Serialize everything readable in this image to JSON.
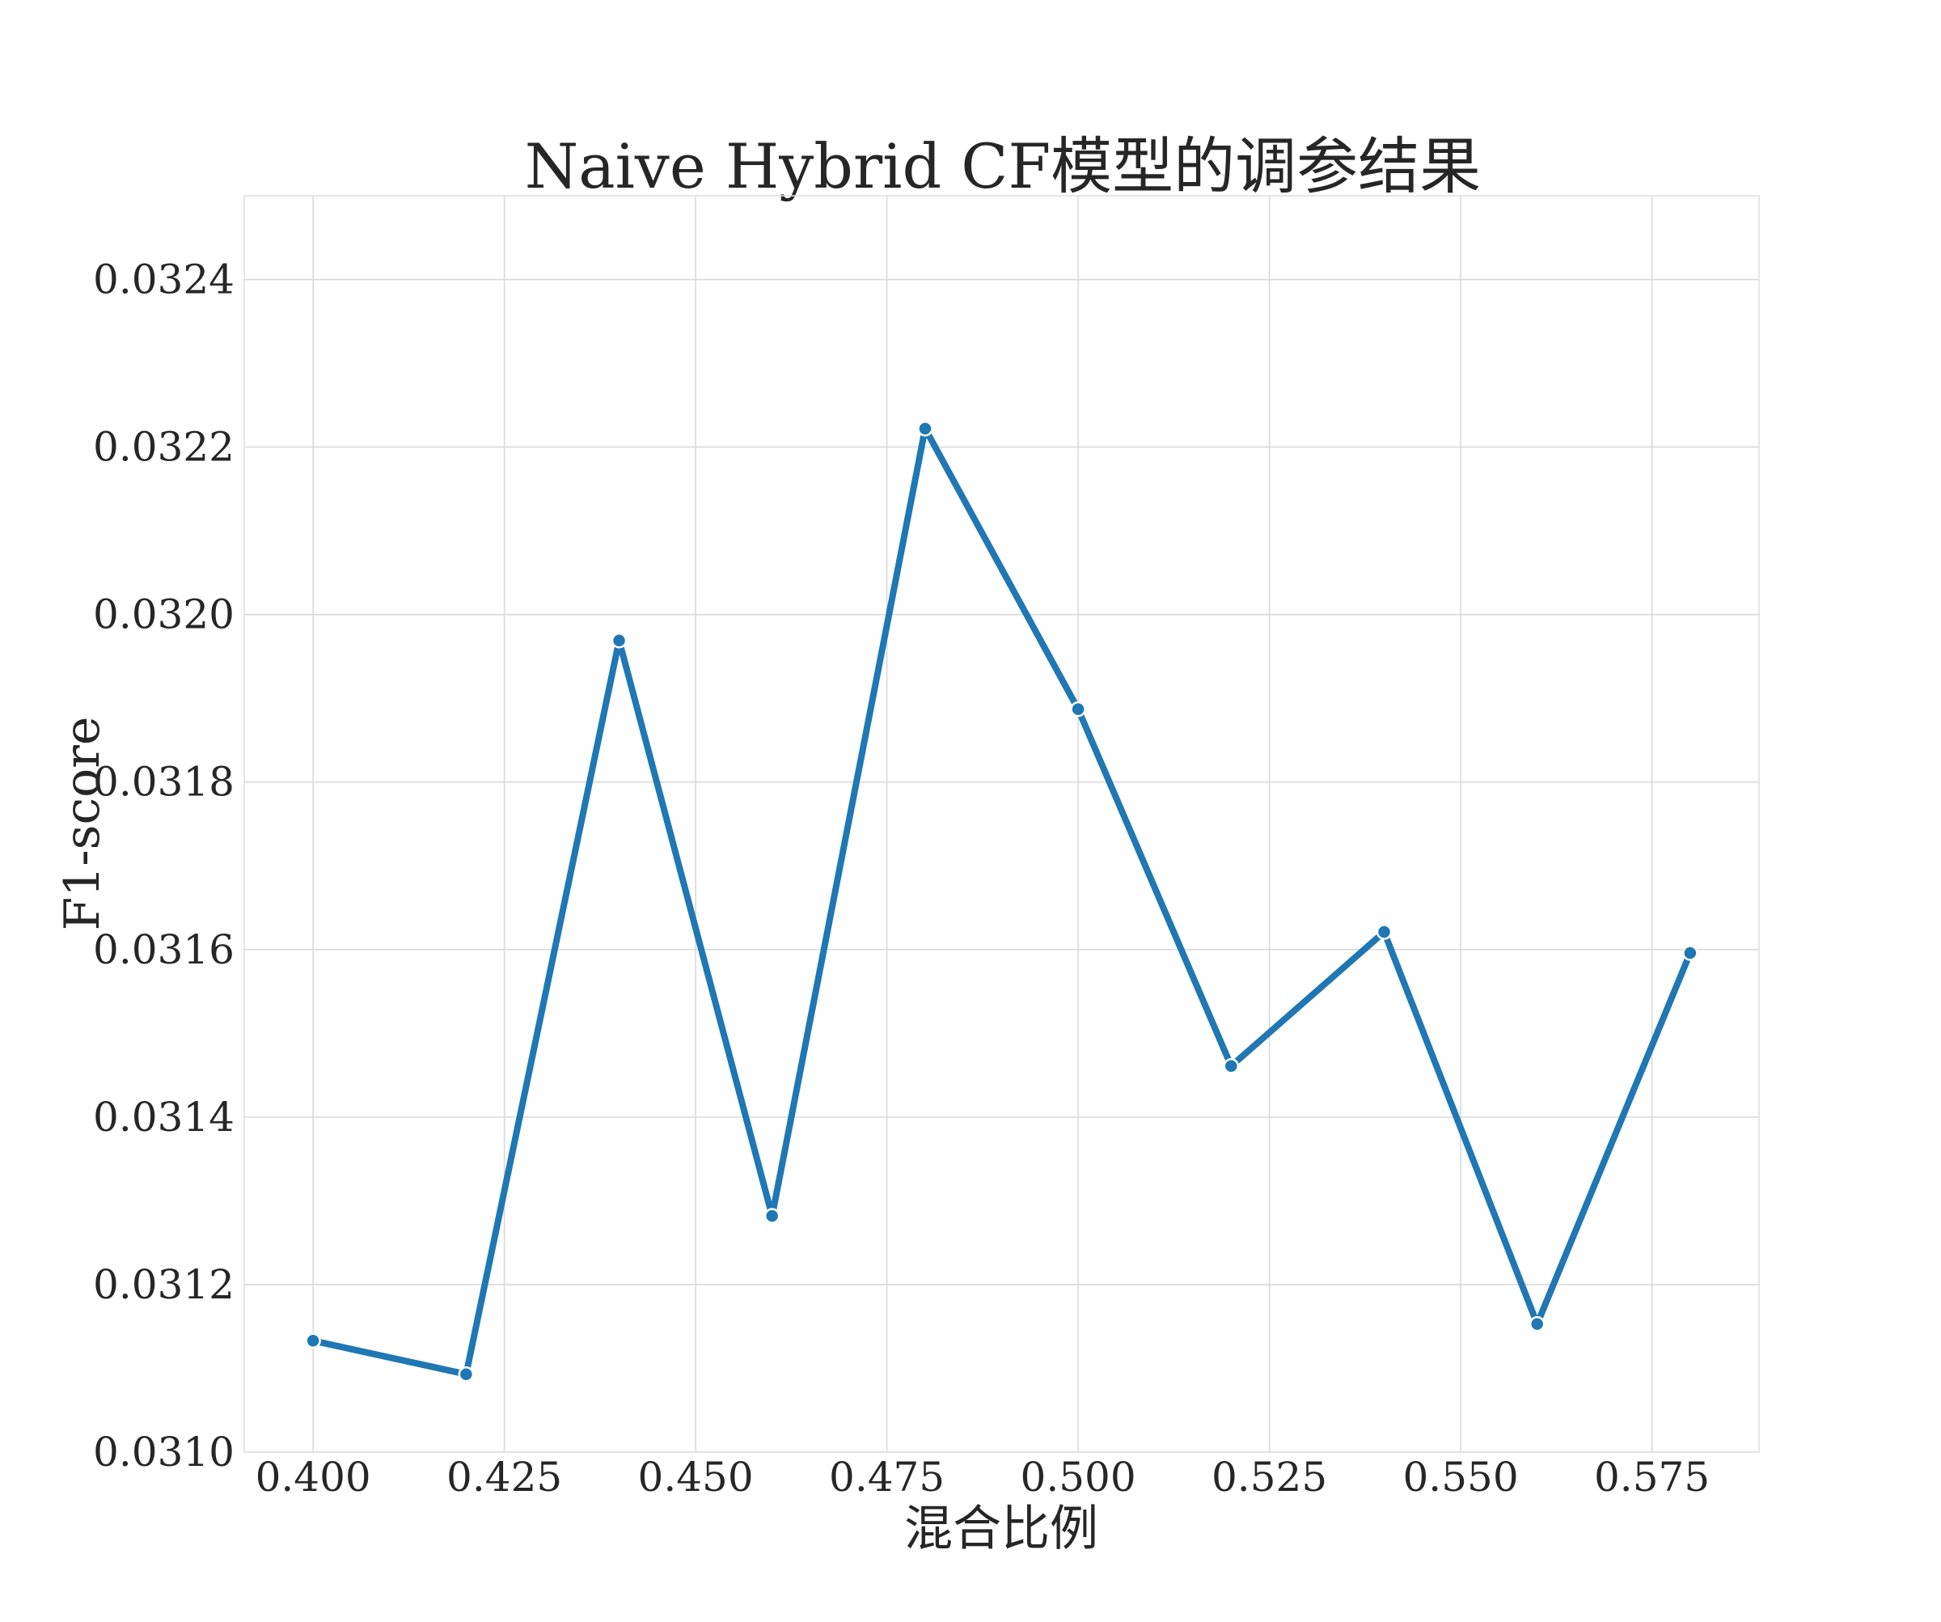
{
  "chart_data": {
    "type": "line",
    "title": "Naive Hybrid CF模型的调参结果",
    "xlabel": "混合比例",
    "ylabel": "F1-score",
    "xlim": [
      0.391,
      0.589
    ],
    "ylim": [
      0.031,
      0.0325
    ],
    "x_ticks": [
      "0.400",
      "0.425",
      "0.450",
      "0.475",
      "0.500",
      "0.525",
      "0.550",
      "0.575"
    ],
    "x_tick_values": [
      0.4,
      0.425,
      0.45,
      0.475,
      0.5,
      0.525,
      0.55,
      0.575
    ],
    "y_ticks": [
      "0.0310",
      "0.0312",
      "0.0314",
      "0.0316",
      "0.0318",
      "0.0320",
      "0.0322",
      "0.0324"
    ],
    "y_tick_values": [
      0.031,
      0.0312,
      0.0314,
      0.0316,
      0.0318,
      0.032,
      0.0322,
      0.0324
    ],
    "grid": true,
    "series": [
      {
        "color": "#1f77b4",
        "marker": "circle",
        "x": [
          0.4,
          0.42,
          0.44,
          0.46,
          0.48,
          0.5,
          0.52,
          0.54,
          0.56,
          0.58
        ],
        "y": [
          0.031133,
          0.031093,
          0.031969,
          0.031282,
          0.032222,
          0.031887,
          0.031461,
          0.031621,
          0.031153,
          0.031596
        ]
      }
    ]
  }
}
